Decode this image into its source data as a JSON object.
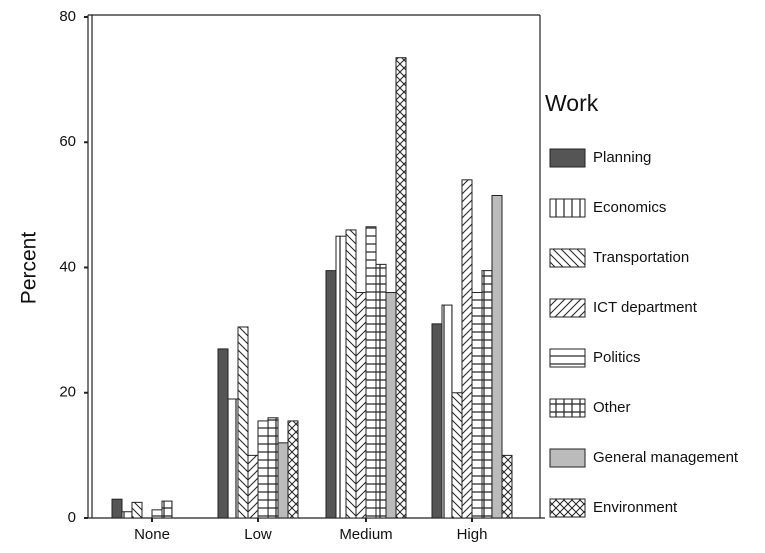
{
  "chart_data": {
    "type": "bar",
    "y_label": "Percent",
    "legend_title": "Work",
    "legend": "right",
    "categories": [
      "None",
      "Low",
      "Medium",
      "High"
    ],
    "ylim": [
      0,
      80
    ],
    "yticks": [
      0,
      20,
      40,
      60,
      80
    ],
    "series": [
      {
        "name": "Planning",
        "color": "#555555",
        "values": [
          3,
          27,
          39.5,
          31
        ]
      },
      {
        "name": "Economics",
        "color": "#ffffff",
        "pattern": "vertical",
        "values": [
          1,
          19,
          45,
          34
        ]
      },
      {
        "name": "Transportation",
        "color": "#ffffff",
        "pattern": "backslash",
        "values": [
          2.5,
          30.5,
          46,
          20
        ]
      },
      {
        "name": "ICT department",
        "color": "#ffffff",
        "pattern": "slash",
        "values": [
          0,
          10,
          36,
          54
        ]
      },
      {
        "name": "Politics",
        "color": "#ffffff",
        "pattern": "horizontal",
        "values": [
          1.3,
          15.5,
          46.5,
          36
        ]
      },
      {
        "name": "Other",
        "color": "#ffffff",
        "pattern": "grid",
        "values": [
          2.7,
          16,
          40.5,
          39.5
        ]
      },
      {
        "name": "General management",
        "color": "#bbbbbb",
        "values": [
          0,
          12,
          36,
          51.5
        ]
      },
      {
        "name": "Environment",
        "color": "#ffffff",
        "pattern": "cross",
        "values": [
          0,
          15.5,
          73.5,
          10
        ]
      }
    ]
  }
}
